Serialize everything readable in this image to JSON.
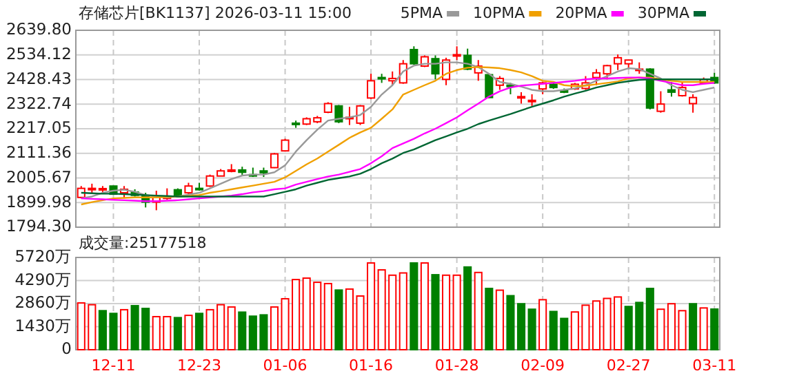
{
  "chart_data": [
    {
      "type": "candlestick",
      "title": "存储芯片[BK1137] 2026-03-11 15:00",
      "categories": [
        null,
        null,
        null,
        null,
        null,
        null,
        null,
        null,
        null,
        null,
        null,
        null,
        null,
        null,
        null,
        null,
        null,
        null,
        null,
        null,
        null,
        null,
        null,
        null,
        null,
        null,
        null,
        null,
        null,
        null,
        null,
        null,
        null,
        null,
        null,
        null,
        null,
        null,
        null,
        null,
        null,
        null,
        null,
        null,
        null,
        null,
        null,
        null,
        null,
        null,
        null,
        null,
        null,
        null,
        null,
        null,
        null,
        null,
        null,
        null
      ],
      "ohlc": [
        [
          1922,
          1971,
          1918,
          1961
        ],
        [
          1955,
          1981,
          1942,
          1961
        ],
        [
          1955,
          1971,
          1942,
          1960
        ],
        [
          1971,
          1971,
          1936,
          1936
        ],
        [
          1942,
          1971,
          1918,
          1957
        ],
        [
          1945,
          1957,
          1926,
          1931
        ],
        [
          1928,
          1942,
          1879,
          1902
        ],
        [
          1902,
          1951,
          1867,
          1926
        ],
        [
          1918,
          1961,
          1912,
          1926
        ],
        [
          1955,
          1961,
          1922,
          1926
        ],
        [
          1942,
          1985,
          1932,
          1971
        ],
        [
          1961,
          1985,
          1951,
          1955
        ],
        [
          1971,
          2020,
          1967,
          2014
        ],
        [
          2014,
          2044,
          2014,
          2036
        ],
        [
          2034,
          2065,
          2030,
          2040
        ],
        [
          2040,
          2054,
          2014,
          2030
        ],
        [
          2020,
          2050,
          2010,
          2016
        ],
        [
          2036,
          2050,
          2010,
          2028
        ],
        [
          2050,
          2113,
          2048,
          2109
        ],
        [
          2122,
          2174,
          2119,
          2168
        ],
        [
          2241,
          2252,
          2221,
          2237
        ],
        [
          2237,
          2266,
          2233,
          2260
        ],
        [
          2247,
          2272,
          2241,
          2264
        ],
        [
          2288,
          2331,
          2284,
          2325
        ],
        [
          2315,
          2319,
          2241,
          2247
        ],
        [
          2260,
          2311,
          2233,
          2266
        ],
        [
          2241,
          2319,
          2233,
          2315
        ],
        [
          2349,
          2453,
          2345,
          2423
        ],
        [
          2437,
          2453,
          2414,
          2433
        ],
        [
          2423,
          2463,
          2404,
          2433
        ],
        [
          2414,
          2512,
          2410,
          2496
        ],
        [
          2557,
          2571,
          2492,
          2496
        ],
        [
          2486,
          2532,
          2482,
          2526
        ],
        [
          2518,
          2532,
          2429,
          2453
        ],
        [
          2429,
          2522,
          2404,
          2512
        ],
        [
          2532,
          2571,
          2512,
          2535
        ],
        [
          2532,
          2561,
          2469,
          2473
        ],
        [
          2457,
          2512,
          2423,
          2486
        ],
        [
          2449,
          2453,
          2349,
          2351
        ],
        [
          2404,
          2443,
          2384,
          2433
        ],
        [
          2404,
          2414,
          2365,
          2400
        ],
        [
          2351,
          2374,
          2325,
          2355
        ],
        [
          2335,
          2365,
          2315,
          2339
        ],
        [
          2388,
          2418,
          2365,
          2414
        ],
        [
          2408,
          2418,
          2388,
          2394
        ],
        [
          2380,
          2390,
          2370,
          2374
        ],
        [
          2388,
          2414,
          2384,
          2408
        ],
        [
          2390,
          2443,
          2384,
          2414
        ],
        [
          2437,
          2473,
          2404,
          2457
        ],
        [
          2453,
          2492,
          2429,
          2488
        ],
        [
          2496,
          2536,
          2469,
          2522
        ],
        [
          2496,
          2512,
          2473,
          2512
        ],
        [
          2469,
          2502,
          2453,
          2473
        ],
        [
          2473,
          2477,
          2300,
          2306
        ],
        [
          2292,
          2378,
          2286,
          2323
        ],
        [
          2384,
          2418,
          2355,
          2374
        ],
        [
          2359,
          2418,
          2355,
          2394
        ],
        [
          2325,
          2365,
          2286,
          2351
        ],
        [
          2414,
          2437,
          2410,
          2429
        ],
        [
          2437,
          2457,
          2410,
          2414
        ]
      ],
      "colors": [
        "#ff0000",
        "#ff0000",
        "#ff0000",
        "#008000",
        "#ff0000",
        "#008000",
        "#008000",
        "#ff0000",
        "#ff0000",
        "#008000",
        "#ff0000",
        "#008000",
        "#ff0000",
        "#ff0000",
        "#ff0000",
        "#008000",
        "#008000",
        "#008000",
        "#ff0000",
        "#ff0000",
        "#008000",
        "#ff0000",
        "#ff0000",
        "#ff0000",
        "#008000",
        "#ff0000",
        "#ff0000",
        "#ff0000",
        "#008000",
        "#ff0000",
        "#ff0000",
        "#008000",
        "#ff0000",
        "#008000",
        "#ff0000",
        "#ff0000",
        "#008000",
        "#ff0000",
        "#008000",
        "#ff0000",
        "#008000",
        "#ff0000",
        "#ff0000",
        "#ff0000",
        "#008000",
        "#008000",
        "#ff0000",
        "#ff0000",
        "#ff0000",
        "#ff0000",
        "#ff0000",
        "#ff0000",
        "#ff0000",
        "#008000",
        "#ff0000",
        "#008000",
        "#ff0000",
        "#ff0000",
        "#ff0000",
        "#008000"
      ],
      "series": [
        {
          "name": "5PMA",
          "type": "line",
          "color": "#999999",
          "values": [
            1918,
            1926,
            1942,
            1951,
            1955,
            1946,
            1932,
            1926,
            1922,
            1926,
            1934,
            1942,
            1961,
            1981,
            2001,
            2016,
            2020,
            2020,
            2030,
            2060,
            2119,
            2168,
            2213,
            2252,
            2260,
            2266,
            2276,
            2311,
            2364,
            2404,
            2463,
            2488,
            2496,
            2496,
            2502,
            2502,
            2496,
            2482,
            2453,
            2418,
            2410,
            2398,
            2384,
            2378,
            2378,
            2384,
            2390,
            2404,
            2423,
            2443,
            2463,
            2477,
            2473,
            2453,
            2433,
            2404,
            2384,
            2374,
            2384,
            2394
          ]
        },
        {
          "name": "10PMA",
          "type": "line",
          "color": "#f0a000",
          "values": [
            1892,
            1902,
            1910,
            1918,
            1920,
            1922,
            1922,
            1922,
            1924,
            1926,
            1928,
            1932,
            1942,
            1949,
            1957,
            1965,
            1973,
            1981,
            1989,
            2008,
            2036,
            2064,
            2089,
            2119,
            2148,
            2178,
            2201,
            2221,
            2260,
            2300,
            2364,
            2384,
            2404,
            2423,
            2453,
            2469,
            2479,
            2482,
            2480,
            2477,
            2469,
            2459,
            2443,
            2423,
            2418,
            2404,
            2400,
            2402,
            2408,
            2414,
            2420,
            2433,
            2437,
            2437,
            2429,
            2423,
            2418,
            2418,
            2418,
            2418
          ]
        },
        {
          "name": "20PMA",
          "type": "line",
          "color": "#ff00ff",
          "values": [
            1918,
            1916,
            1914,
            1912,
            1910,
            1908,
            1906,
            1906,
            1908,
            1910,
            1914,
            1918,
            1922,
            1926,
            1930,
            1936,
            1944,
            1949,
            1957,
            1961,
            1977,
            1989,
            2001,
            2012,
            2020,
            2032,
            2044,
            2069,
            2099,
            2134,
            2154,
            2174,
            2197,
            2217,
            2241,
            2266,
            2296,
            2325,
            2355,
            2378,
            2394,
            2402,
            2406,
            2410,
            2414,
            2418,
            2423,
            2429,
            2433,
            2433,
            2435,
            2437,
            2437,
            2433,
            2423,
            2414,
            2404,
            2404,
            2410,
            2414
          ]
        },
        {
          "name": "30PMA",
          "type": "line",
          "color": "#006633",
          "values": [
            1942,
            1940,
            1938,
            1938,
            1936,
            1934,
            1932,
            1930,
            1928,
            1926,
            1926,
            1926,
            1926,
            1926,
            1926,
            1926,
            1926,
            1926,
            1936,
            1946,
            1957,
            1973,
            1985,
            1997,
            2005,
            2012,
            2024,
            2044,
            2069,
            2089,
            2113,
            2128,
            2148,
            2168,
            2184,
            2201,
            2217,
            2237,
            2252,
            2266,
            2280,
            2296,
            2311,
            2325,
            2339,
            2355,
            2368,
            2380,
            2394,
            2404,
            2414,
            2421,
            2427,
            2429,
            2429,
            2429,
            2429,
            2429,
            2429,
            2429
          ]
        }
      ],
      "ylim": [
        1794.3,
        2639.8
      ],
      "yticks": [
        {
          "value": 1794.3,
          "label": "1794.30"
        },
        {
          "value": 1899.98,
          "label": "1899.98"
        },
        {
          "value": 2005.67,
          "label": "2005.67"
        },
        {
          "value": 2111.36,
          "label": "2111.36"
        },
        {
          "value": 2217.05,
          "label": "2217.05"
        },
        {
          "value": 2322.74,
          "label": "2322.74"
        },
        {
          "value": 2428.43,
          "label": "2428.43"
        },
        {
          "value": 2534.12,
          "label": "2534.12"
        },
        {
          "value": 2639.8,
          "label": "2639.80"
        }
      ],
      "grid": true,
      "legend": "top",
      "tick_labels": "y"
    },
    {
      "type": "bar",
      "title": "成交量:25177518",
      "categories": [
        null,
        null,
        null,
        "12-11",
        null,
        null,
        null,
        null,
        null,
        null,
        null,
        "12-23",
        null,
        null,
        null,
        null,
        null,
        null,
        null,
        "01-06",
        null,
        null,
        null,
        null,
        null,
        null,
        null,
        "01-16",
        null,
        null,
        null,
        null,
        null,
        null,
        null,
        "01-28",
        null,
        null,
        null,
        null,
        null,
        null,
        null,
        "02-09",
        null,
        null,
        null,
        null,
        null,
        null,
        null,
        "02-27",
        null,
        null,
        null,
        null,
        null,
        null,
        null,
        "03-11"
      ],
      "values": [
        2900,
        2790,
        2420,
        2250,
        2480,
        2730,
        2560,
        2050,
        2050,
        1990,
        2130,
        2250,
        2480,
        2790,
        2650,
        2330,
        2080,
        2160,
        2650,
        3160,
        4350,
        4440,
        4180,
        4100,
        3700,
        3760,
        3330,
        5380,
        4950,
        4620,
        4760,
        5380,
        5380,
        4650,
        4620,
        4620,
        5130,
        4790,
        3800,
        3690,
        3350,
        2850,
        2510,
        3100,
        2370,
        1940,
        2340,
        2760,
        3020,
        3180,
        3270,
        2680,
        2930,
        3800,
        2510,
        2850,
        2420,
        2850,
        2590,
        2520
      ],
      "colors": [
        "#ff0000",
        "#ff0000",
        "#008000",
        "#008000",
        "#ff0000",
        "#008000",
        "#008000",
        "#ff0000",
        "#ff0000",
        "#008000",
        "#ff0000",
        "#008000",
        "#ff0000",
        "#ff0000",
        "#ff0000",
        "#008000",
        "#008000",
        "#008000",
        "#ff0000",
        "#ff0000",
        "#ff0000",
        "#ff0000",
        "#ff0000",
        "#ff0000",
        "#008000",
        "#ff0000",
        "#ff0000",
        "#ff0000",
        "#ff0000",
        "#ff0000",
        "#ff0000",
        "#008000",
        "#ff0000",
        "#008000",
        "#ff0000",
        "#ff0000",
        "#008000",
        "#ff0000",
        "#008000",
        "#ff0000",
        "#008000",
        "#008000",
        "#008000",
        "#ff0000",
        "#008000",
        "#008000",
        "#ff0000",
        "#ff0000",
        "#ff0000",
        "#ff0000",
        "#ff0000",
        "#008000",
        "#008000",
        "#008000",
        "#ff0000",
        "#ff0000",
        "#ff0000",
        "#008000",
        "#ff0000",
        "#008000"
      ],
      "ylim": [
        0,
        5720
      ],
      "yticks": [
        0,
        {
          "value": 1430,
          "label": "1430万"
        },
        {
          "value": 2860,
          "label": "2860万"
        },
        {
          "value": 4290,
          "label": "4290万"
        },
        {
          "value": 5720,
          "label": "5720万"
        }
      ],
      "grid": true
    }
  ]
}
